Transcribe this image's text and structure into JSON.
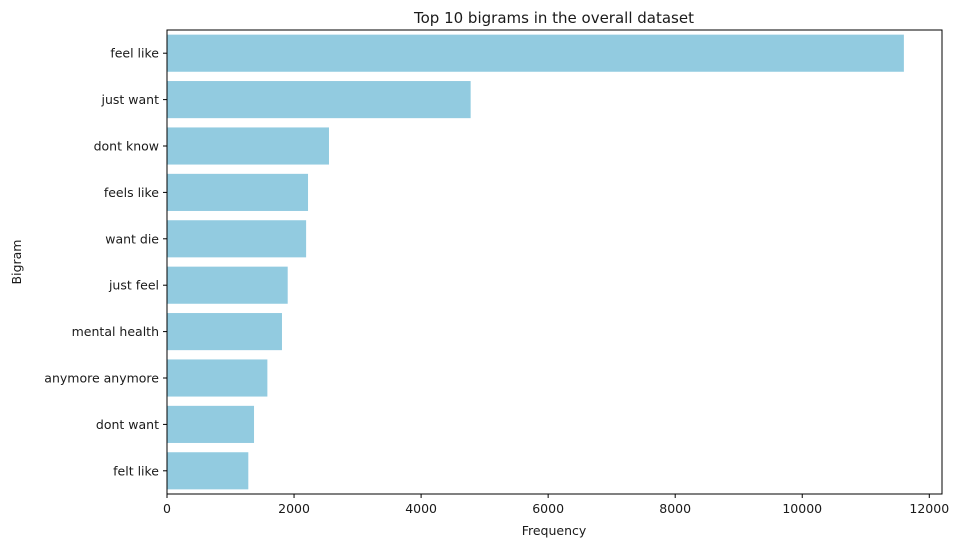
{
  "chart_data": {
    "type": "bar",
    "orientation": "horizontal",
    "title": "Top 10 bigrams in the overall dataset",
    "xlabel": "Frequency",
    "ylabel": "Bigram",
    "categories": [
      "feel like",
      "just want",
      "dont know",
      "feels like",
      "want die",
      "just feel",
      "mental health",
      "anymore anymore",
      "dont want",
      "felt like"
    ],
    "values": [
      11600,
      4780,
      2550,
      2220,
      2190,
      1900,
      1810,
      1580,
      1370,
      1280
    ],
    "xlim": [
      0,
      12200
    ],
    "xticks": [
      0,
      2000,
      4000,
      6000,
      8000,
      10000,
      12000
    ],
    "bar_color": "#92cbe0",
    "grid": false,
    "legend": "none"
  }
}
